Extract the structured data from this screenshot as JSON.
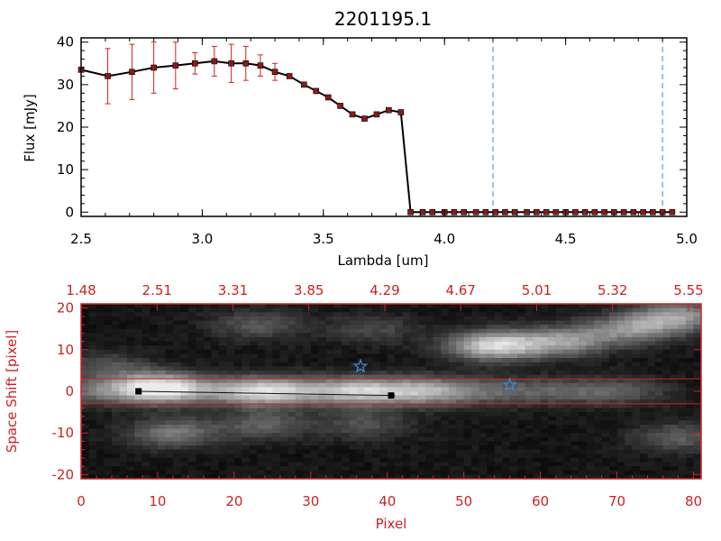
{
  "chart_data": [
    {
      "type": "line",
      "title": "2201195.1",
      "xlabel": "Lambda [um]",
      "ylabel": "Flux [mJy]",
      "xlim": [
        2.5,
        5.0
      ],
      "ylim": [
        -1,
        41
      ],
      "xticks": [
        "2.5",
        "3.0",
        "3.5",
        "4.0",
        "4.5",
        "5.0"
      ],
      "yticks": [
        "0",
        "10",
        "20",
        "30",
        "40"
      ],
      "grid": false,
      "vlines": [
        4.2,
        4.9
      ],
      "series": [
        {
          "x": [
            2.5,
            2.61,
            2.71,
            2.8,
            2.89,
            2.97,
            3.05,
            3.12,
            3.18,
            3.24,
            3.3,
            3.36,
            3.42,
            3.47,
            3.52,
            3.57,
            3.62,
            3.67,
            3.72,
            3.77,
            3.82,
            3.86,
            3.91,
            3.95,
            4.0,
            4.04,
            4.08,
            4.13,
            4.17,
            4.21,
            4.25,
            4.29,
            4.34,
            4.38,
            4.42,
            4.46,
            4.5,
            4.54,
            4.58,
            4.62,
            4.66,
            4.7,
            4.74,
            4.78,
            4.82,
            4.86,
            4.9,
            4.94
          ],
          "y": [
            33.5,
            32.0,
            33.0,
            34.0,
            34.5,
            35.0,
            35.5,
            35.0,
            35.0,
            34.5,
            33.0,
            32.0,
            30.0,
            28.5,
            27.0,
            25.0,
            23.0,
            22.0,
            23.0,
            24.0,
            23.5,
            0.0,
            0.0,
            0.0,
            0.0,
            0.0,
            0.0,
            0.0,
            0.0,
            0.0,
            0.0,
            0.0,
            0.0,
            0.0,
            0.0,
            0.0,
            0.0,
            0.0,
            0.0,
            0.0,
            0.0,
            0.0,
            0.0,
            0.0,
            0.0,
            0.0,
            0.0,
            0.0
          ],
          "yerr": [
            0,
            6.5,
            6.5,
            6.0,
            5.5,
            2.5,
            3.5,
            4.5,
            4.0,
            2.5,
            2.0,
            0,
            0,
            0,
            0,
            0,
            0,
            0,
            0,
            0,
            0,
            0,
            0,
            0,
            0,
            0,
            0,
            0,
            0,
            0,
            0,
            0,
            0,
            0,
            0,
            0,
            0,
            0,
            0,
            0,
            0,
            0,
            0,
            0,
            0,
            0,
            0,
            0
          ],
          "color": "#000000",
          "marker_color": "#8b1a1a",
          "errorbar_color": "#d61f1f"
        }
      ]
    },
    {
      "type": "heatmap",
      "xlabel": "Pixel",
      "ylabel": "Space Shift [pixel]",
      "xlim": [
        0,
        81
      ],
      "ylim": [
        -21,
        21
      ],
      "xticks": [
        "0",
        "10",
        "20",
        "30",
        "40",
        "50",
        "60",
        "70",
        "80"
      ],
      "yticks": [
        "-20",
        "-10",
        "0",
        "10",
        "20"
      ],
      "top_ticks": [
        "1.48",
        "2.51",
        "3.31",
        "3.85",
        "4.29",
        "4.67",
        "5.01",
        "5.32",
        "5.55"
      ],
      "hlines": [
        3,
        -3
      ],
      "markers": [
        {
          "shape": "square",
          "x": 7.5,
          "y": 0,
          "color": "#000000"
        },
        {
          "shape": "square",
          "x": 40.5,
          "y": -1,
          "color": "#000000"
        },
        {
          "shape": "star",
          "x": 36.5,
          "y": 6,
          "color": "#3f86d6"
        },
        {
          "shape": "star",
          "x": 56,
          "y": 1.5,
          "color": "#3f86d6"
        }
      ],
      "blobs": [
        {
          "x": 10,
          "y": 1,
          "amp": 0.75
        },
        {
          "x": 24,
          "y": 0,
          "amp": 0.55
        },
        {
          "x": 36,
          "y": 0,
          "amp": 0.45
        },
        {
          "x": 45,
          "y": 0,
          "amp": 0.35
        },
        {
          "x": 54,
          "y": 11,
          "amp": 0.82
        },
        {
          "x": 63,
          "y": 12,
          "amp": 0.55
        },
        {
          "x": 72,
          "y": 15,
          "amp": 0.5
        },
        {
          "x": 78,
          "y": 18,
          "amp": 0.55
        },
        {
          "x": 12,
          "y": -10,
          "amp": 0.42
        },
        {
          "x": 24,
          "y": -8,
          "amp": 0.3
        },
        {
          "x": 37,
          "y": -8,
          "amp": 0.25
        },
        {
          "x": 23,
          "y": 16,
          "amp": 0.28
        },
        {
          "x": 38,
          "y": 15,
          "amp": 0.22
        },
        {
          "x": 78,
          "y": -11,
          "amp": 0.3
        },
        {
          "x": 3,
          "y": 6,
          "amp": 0.25
        }
      ],
      "colors": {
        "frame": "#cc2222",
        "box": "#cc2222"
      }
    }
  ]
}
